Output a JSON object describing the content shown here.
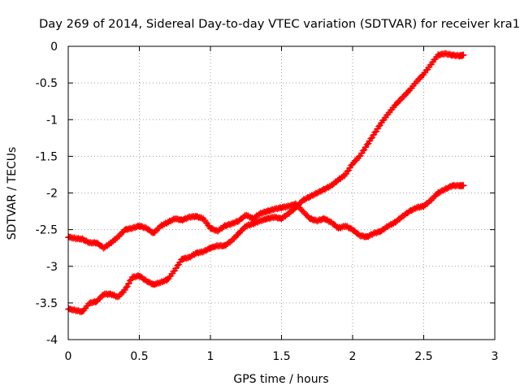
{
  "chart_data": {
    "type": "scatter",
    "title": "Day 269 of 2014, Sidereal Day-to-day VTEC variation (SDTVAR) for receiver kra1",
    "xlabel": "GPS time / hours",
    "ylabel": "SDTVAR / TECUs",
    "xlim": [
      0,
      3
    ],
    "ylim": [
      -4,
      0
    ],
    "xticks": [
      {
        "value": 0,
        "label": "0"
      },
      {
        "value": 0.5,
        "label": "0.5"
      },
      {
        "value": 1,
        "label": "1"
      },
      {
        "value": 1.5,
        "label": "1.5"
      },
      {
        "value": 2,
        "label": "2"
      },
      {
        "value": 2.5,
        "label": "2.5"
      },
      {
        "value": 3,
        "label": "3"
      }
    ],
    "yticks": [
      {
        "value": 0,
        "label": "0"
      },
      {
        "value": -0.5,
        "label": "-0.5"
      },
      {
        "value": -1,
        "label": "-1"
      },
      {
        "value": -1.5,
        "label": "-1.5"
      },
      {
        "value": -2,
        "label": "-2"
      },
      {
        "value": -2.5,
        "label": "-2.5"
      },
      {
        "value": -3,
        "label": "-3"
      },
      {
        "value": -3.5,
        "label": "-3.5"
      },
      {
        "value": -4,
        "label": "-4"
      }
    ],
    "grid": true,
    "marker": "+",
    "color": "#ff0000",
    "series": [
      {
        "name": "series-lower-start",
        "x": [
          0.0,
          0.05,
          0.1,
          0.15,
          0.2,
          0.25,
          0.3,
          0.35,
          0.4,
          0.45,
          0.5,
          0.55,
          0.6,
          0.65,
          0.7,
          0.75,
          0.8,
          0.85,
          0.9,
          0.95,
          1.0,
          1.05,
          1.1,
          1.15,
          1.2,
          1.25,
          1.3,
          1.35,
          1.4,
          1.45,
          1.5,
          1.55,
          1.6,
          1.65,
          1.7,
          1.75,
          1.8,
          1.85,
          1.9,
          1.95,
          2.0,
          2.05,
          2.1,
          2.15,
          2.2,
          2.25,
          2.3,
          2.35,
          2.4,
          2.45,
          2.5,
          2.55,
          2.6,
          2.65,
          2.7,
          2.75,
          2.78
        ],
        "y": [
          -3.58,
          -3.6,
          -3.62,
          -3.5,
          -3.48,
          -3.38,
          -3.38,
          -3.42,
          -3.32,
          -3.15,
          -3.13,
          -3.2,
          -3.25,
          -3.22,
          -3.18,
          -3.05,
          -2.9,
          -2.88,
          -2.82,
          -2.8,
          -2.75,
          -2.72,
          -2.72,
          -2.65,
          -2.55,
          -2.45,
          -2.42,
          -2.38,
          -2.35,
          -2.33,
          -2.35,
          -2.28,
          -2.2,
          -2.1,
          -2.05,
          -2.0,
          -1.95,
          -1.9,
          -1.82,
          -1.75,
          -1.6,
          -1.5,
          -1.35,
          -1.2,
          -1.05,
          -0.92,
          -0.8,
          -0.7,
          -0.6,
          -0.48,
          -0.38,
          -0.25,
          -0.12,
          -0.1,
          -0.12,
          -0.13,
          -0.12
        ]
      },
      {
        "name": "series-upper-start",
        "x": [
          0.0,
          0.05,
          0.1,
          0.15,
          0.2,
          0.25,
          0.3,
          0.35,
          0.4,
          0.45,
          0.5,
          0.55,
          0.6,
          0.65,
          0.7,
          0.75,
          0.8,
          0.85,
          0.9,
          0.95,
          1.0,
          1.05,
          1.1,
          1.15,
          1.2,
          1.25,
          1.3,
          1.35,
          1.4,
          1.45,
          1.5,
          1.55,
          1.6,
          1.65,
          1.7,
          1.75,
          1.8,
          1.85,
          1.9,
          1.95,
          2.0,
          2.05,
          2.1,
          2.15,
          2.2,
          2.25,
          2.3,
          2.35,
          2.4,
          2.45,
          2.5,
          2.55,
          2.6,
          2.65,
          2.7,
          2.75,
          2.78
        ],
        "y": [
          -2.6,
          -2.62,
          -2.63,
          -2.68,
          -2.68,
          -2.75,
          -2.68,
          -2.6,
          -2.5,
          -2.48,
          -2.45,
          -2.48,
          -2.55,
          -2.45,
          -2.4,
          -2.35,
          -2.37,
          -2.33,
          -2.32,
          -2.35,
          -2.48,
          -2.52,
          -2.45,
          -2.42,
          -2.38,
          -2.3,
          -2.35,
          -2.28,
          -2.25,
          -2.22,
          -2.2,
          -2.18,
          -2.15,
          -2.25,
          -2.35,
          -2.38,
          -2.35,
          -2.4,
          -2.48,
          -2.45,
          -2.5,
          -2.58,
          -2.6,
          -2.55,
          -2.52,
          -2.45,
          -2.4,
          -2.32,
          -2.25,
          -2.2,
          -2.18,
          -2.1,
          -2.0,
          -1.95,
          -1.9,
          -1.9,
          -1.9
        ]
      }
    ]
  }
}
